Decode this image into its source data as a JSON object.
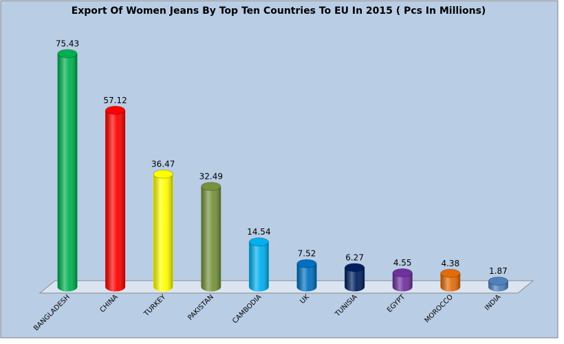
{
  "chart_data": {
    "type": "bar",
    "title": "Export  Of Women Jeans By Top Ten Countries To EU In 2015 ( Pcs In Millions)",
    "categories": [
      "BANGLADESH",
      "CHINA",
      "TURKEY",
      "PAKISTAN",
      "CAMBODIA",
      "UK",
      "TUNISIA",
      "EGYPT",
      "MOROCCO",
      "INDIA"
    ],
    "values": [
      75.43,
      57.12,
      36.47,
      32.49,
      14.54,
      7.52,
      6.27,
      4.55,
      4.38,
      1.87
    ],
    "value_labels": [
      "75.43",
      "57.12",
      "36.47",
      "32.49",
      "14.54",
      "7.52",
      "6.27",
      "4.55",
      "4.38",
      "1.87"
    ],
    "colors": [
      "#00b050",
      "#ff0000",
      "#ffff00",
      "#76923c",
      "#00b0f0",
      "#0070c0",
      "#002060",
      "#7030a0",
      "#e36c09",
      "#4f81bd"
    ]
  }
}
